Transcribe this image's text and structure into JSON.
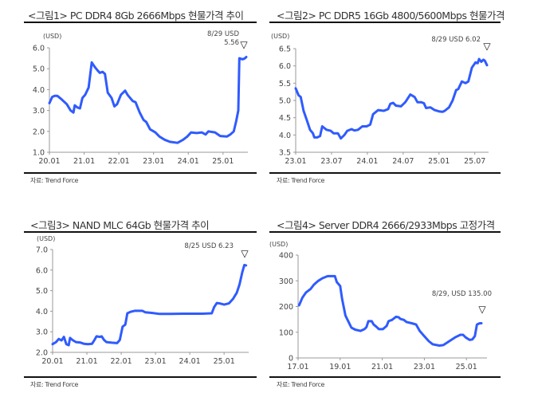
{
  "line_color": "#2f5bff",
  "chart_data": [
    {
      "type": "line",
      "title": "<그림1> PC DDR4 8Gb 2666Mbps 현물가격 추이",
      "ylabel": "(USD)",
      "source": "자료: Trend Force",
      "annotation": [
        "8/29 USD",
        "5.56"
      ],
      "marker": "▽",
      "xlim": [
        2020.0,
        2025.67
      ],
      "ylim": [
        1.0,
        6.0
      ],
      "yticks": [
        "1.0",
        "2.0",
        "3.0",
        "4.0",
        "5.0",
        "6.0"
      ],
      "xticks": [
        {
          "label": "20.01",
          "value": 2020.0
        },
        {
          "label": "21.01",
          "value": 2021.0
        },
        {
          "label": "22.01",
          "value": 2022.0
        },
        {
          "label": "23.01",
          "value": 2023.0
        },
        {
          "label": "24.01",
          "value": 2024.0
        },
        {
          "label": "25.01",
          "value": 2025.0
        }
      ],
      "x": [
        2020.0,
        2020.08,
        2020.15,
        2020.23,
        2020.34,
        2020.5,
        2020.61,
        2020.69,
        2020.73,
        2020.8,
        2020.88,
        2020.95,
        2021.03,
        2021.13,
        2021.22,
        2021.3,
        2021.37,
        2021.45,
        2021.53,
        2021.6,
        2021.68,
        2021.79,
        2021.87,
        2021.95,
        2022.06,
        2022.18,
        2022.25,
        2022.4,
        2022.48,
        2022.6,
        2022.71,
        2022.79,
        2022.9,
        2023.05,
        2023.17,
        2023.32,
        2023.47,
        2023.69,
        2023.85,
        2023.97,
        2024.08,
        2024.24,
        2024.39,
        2024.5,
        2024.58,
        2024.77,
        2024.92,
        2025.11,
        2025.21,
        2025.31,
        2025.38,
        2025.44,
        2025.47,
        2025.57,
        2025.63,
        2025.67
      ],
      "y": [
        3.35,
        3.65,
        3.7,
        3.7,
        3.55,
        3.3,
        3.0,
        2.9,
        3.25,
        3.15,
        3.1,
        3.6,
        3.75,
        4.1,
        5.3,
        5.1,
        4.95,
        4.8,
        4.85,
        4.75,
        3.85,
        3.6,
        3.2,
        3.3,
        3.75,
        3.95,
        3.75,
        3.45,
        3.4,
        2.9,
        2.55,
        2.45,
        2.1,
        1.95,
        1.75,
        1.6,
        1.5,
        1.45,
        1.6,
        1.75,
        1.95,
        1.92,
        1.95,
        1.85,
        2.0,
        1.95,
        1.78,
        1.75,
        1.85,
        2.0,
        2.5,
        3.0,
        5.5,
        5.45,
        5.5,
        5.56
      ]
    },
    {
      "type": "line",
      "title": "<그림2> PC DDR5 16Gb 4800/5600Mbps 현물가격",
      "ylabel": "(USD)",
      "source": "자료: Trend Force",
      "annotation": [
        "8/29 USD 6.02"
      ],
      "marker": "▽",
      "xlim": [
        2023.0,
        2025.67
      ],
      "ylim": [
        3.5,
        6.5
      ],
      "yticks": [
        "3.5",
        "4.0",
        "4.5",
        "5.0",
        "5.5",
        "6.0",
        "6.5"
      ],
      "xticks": [
        {
          "label": "23.01",
          "value": 2023.0
        },
        {
          "label": "23.07",
          "value": 2023.5
        },
        {
          "label": "24.01",
          "value": 2024.0
        },
        {
          "label": "24.07",
          "value": 2024.5
        },
        {
          "label": "25.01",
          "value": 2025.0
        },
        {
          "label": "25.07",
          "value": 2025.5
        }
      ],
      "x": [
        2023.0,
        2023.04,
        2023.07,
        2023.11,
        2023.16,
        2023.2,
        2023.24,
        2023.26,
        2023.3,
        2023.34,
        2023.37,
        2023.43,
        2023.49,
        2023.53,
        2023.59,
        2023.63,
        2023.68,
        2023.72,
        2023.78,
        2023.82,
        2023.87,
        2023.93,
        2023.99,
        2024.04,
        2024.08,
        2024.15,
        2024.23,
        2024.29,
        2024.32,
        2024.36,
        2024.4,
        2024.47,
        2024.53,
        2024.6,
        2024.66,
        2024.7,
        2024.75,
        2024.79,
        2024.82,
        2024.88,
        2024.94,
        2025.01,
        2025.05,
        2025.08,
        2025.14,
        2025.19,
        2025.24,
        2025.27,
        2025.32,
        2025.37,
        2025.41,
        2025.46,
        2025.51,
        2025.54,
        2025.56,
        2025.59,
        2025.62,
        2025.64,
        2025.67
      ],
      "y": [
        5.35,
        5.15,
        5.1,
        4.7,
        4.4,
        4.15,
        4.05,
        3.93,
        3.93,
        3.97,
        4.25,
        4.15,
        4.12,
        4.05,
        4.05,
        3.9,
        4.0,
        4.12,
        4.17,
        4.13,
        4.15,
        4.25,
        4.25,
        4.3,
        4.6,
        4.72,
        4.7,
        4.75,
        4.9,
        4.93,
        4.85,
        4.83,
        4.95,
        5.17,
        5.1,
        4.95,
        4.95,
        4.92,
        4.78,
        4.8,
        4.72,
        4.68,
        4.67,
        4.7,
        4.8,
        5.0,
        5.3,
        5.33,
        5.55,
        5.5,
        5.55,
        5.95,
        6.1,
        6.08,
        6.2,
        6.12,
        6.18,
        6.15,
        6.02
      ]
    },
    {
      "type": "line",
      "title": "<그림3> NAND MLC 64Gb 현물가격 추이",
      "ylabel": "(USD)",
      "source": "자료: Trend Force",
      "annotation": [
        "8/25 USD 6.23"
      ],
      "marker": "▽",
      "xlim": [
        2020.0,
        2025.67
      ],
      "ylim": [
        2.0,
        7.0
      ],
      "yticks": [
        "2.0",
        "3.0",
        "4.0",
        "5.0",
        "6.0",
        "7.0"
      ],
      "xticks": [
        {
          "label": "20.01",
          "value": 2020.0
        },
        {
          "label": "21.01",
          "value": 2021.0
        },
        {
          "label": "22.01",
          "value": 2022.0
        },
        {
          "label": "23.01",
          "value": 2023.0
        },
        {
          "label": "24.01",
          "value": 2024.0
        },
        {
          "label": "25.01",
          "value": 2025.0
        }
      ],
      "x": [
        2020.0,
        2020.1,
        2020.18,
        2020.26,
        2020.33,
        2020.4,
        2020.47,
        2020.51,
        2020.58,
        2020.68,
        2020.8,
        2020.91,
        2021.03,
        2021.15,
        2021.22,
        2021.28,
        2021.38,
        2021.43,
        2021.5,
        2021.57,
        2021.73,
        2021.88,
        2021.96,
        2022.04,
        2022.12,
        2022.18,
        2022.27,
        2022.39,
        2022.62,
        2022.7,
        2022.89,
        2023.12,
        2023.43,
        2023.82,
        2024.36,
        2024.64,
        2024.71,
        2024.79,
        2024.87,
        2025.0,
        2025.14,
        2025.26,
        2025.37,
        2025.45,
        2025.53,
        2025.59,
        2025.64
      ],
      "y": [
        2.4,
        2.5,
        2.65,
        2.58,
        2.75,
        2.4,
        2.35,
        2.7,
        2.6,
        2.5,
        2.48,
        2.42,
        2.4,
        2.42,
        2.6,
        2.78,
        2.75,
        2.78,
        2.6,
        2.5,
        2.47,
        2.45,
        2.6,
        3.25,
        3.35,
        3.9,
        3.97,
        4.02,
        4.02,
        3.95,
        3.92,
        3.87,
        3.87,
        3.88,
        3.88,
        3.9,
        4.2,
        4.4,
        4.38,
        4.32,
        4.38,
        4.6,
        4.9,
        5.3,
        5.9,
        6.25,
        6.23
      ]
    },
    {
      "type": "line",
      "title": "<그림4> Server DDR4 2666/2933Mbps 고정가격",
      "ylabel": "(USD)",
      "source": "자료: Trend Force",
      "annotation": [
        "8/29, USD 135.00"
      ],
      "marker": "▽",
      "xlim": [
        2017.0,
        2025.9
      ],
      "ylim": [
        0,
        400
      ],
      "yticks": [
        "0",
        "100",
        "200",
        "300",
        "400"
      ],
      "xticks": [
        {
          "label": "17.01",
          "value": 2017.0
        },
        {
          "label": "19.01",
          "value": 2019.0
        },
        {
          "label": "21.01",
          "value": 2021.0
        },
        {
          "label": "23.01",
          "value": 2023.0
        },
        {
          "label": "25.01",
          "value": 2025.0
        }
      ],
      "x": [
        2017.05,
        2017.21,
        2017.38,
        2017.59,
        2017.75,
        2017.96,
        2018.16,
        2018.41,
        2018.75,
        2018.84,
        2019.0,
        2019.09,
        2019.25,
        2019.4,
        2019.53,
        2019.71,
        2019.96,
        2020.15,
        2020.25,
        2020.34,
        2020.5,
        2020.59,
        2020.71,
        2020.84,
        2021.03,
        2021.21,
        2021.3,
        2021.46,
        2021.65,
        2021.78,
        2021.86,
        2022.03,
        2022.15,
        2022.4,
        2022.61,
        2022.78,
        2022.96,
        2023.21,
        2023.4,
        2023.71,
        2023.9,
        2024.09,
        2024.28,
        2024.46,
        2024.71,
        2024.84,
        2024.96,
        2025.15,
        2025.28,
        2025.4,
        2025.5,
        2025.63,
        2025.71
      ],
      "y": [
        205,
        235,
        255,
        268,
        285,
        300,
        310,
        318,
        318,
        295,
        280,
        230,
        165,
        140,
        118,
        110,
        105,
        112,
        120,
        143,
        143,
        130,
        122,
        112,
        112,
        125,
        143,
        148,
        160,
        158,
        152,
        148,
        140,
        135,
        130,
        105,
        88,
        65,
        53,
        48,
        50,
        60,
        70,
        80,
        90,
        90,
        80,
        70,
        72,
        85,
        130,
        135,
        135
      ]
    }
  ]
}
